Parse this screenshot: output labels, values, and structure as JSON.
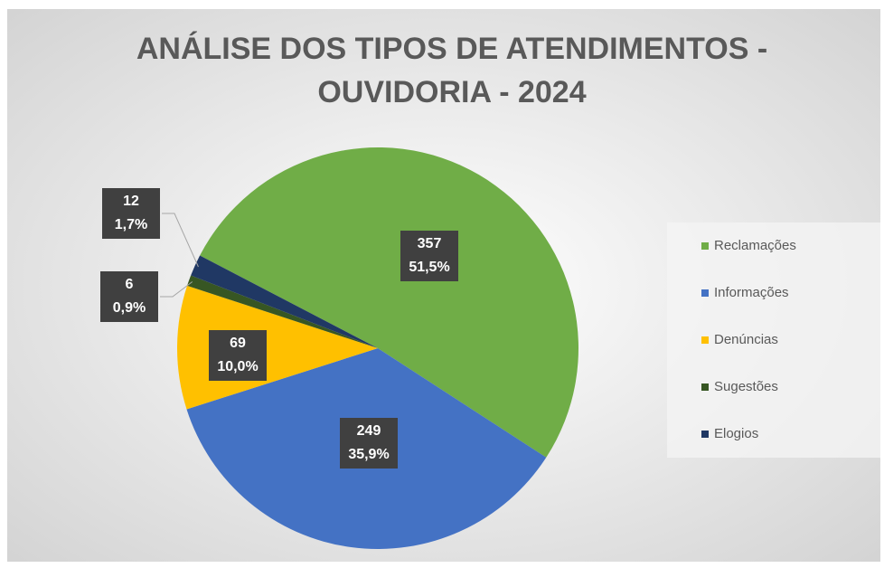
{
  "chart_data": {
    "type": "pie",
    "title": [
      "ANÁLISE DOS TIPOS DE ATENDIMENTOS -",
      "OUVIDORIA - 2024"
    ],
    "categories": [
      "Reclamações",
      "Informações",
      "Denúncias",
      "Sugestões",
      "Elogios"
    ],
    "values": [
      357,
      249,
      69,
      6,
      12
    ],
    "percent_labels": [
      "51,5%",
      "35,9%",
      "10,0%",
      "0,9%",
      "1,7%"
    ],
    "colors": [
      "#70ad47",
      "#4472c4",
      "#ffc000",
      "#375623",
      "#203864"
    ],
    "legend": "right"
  }
}
